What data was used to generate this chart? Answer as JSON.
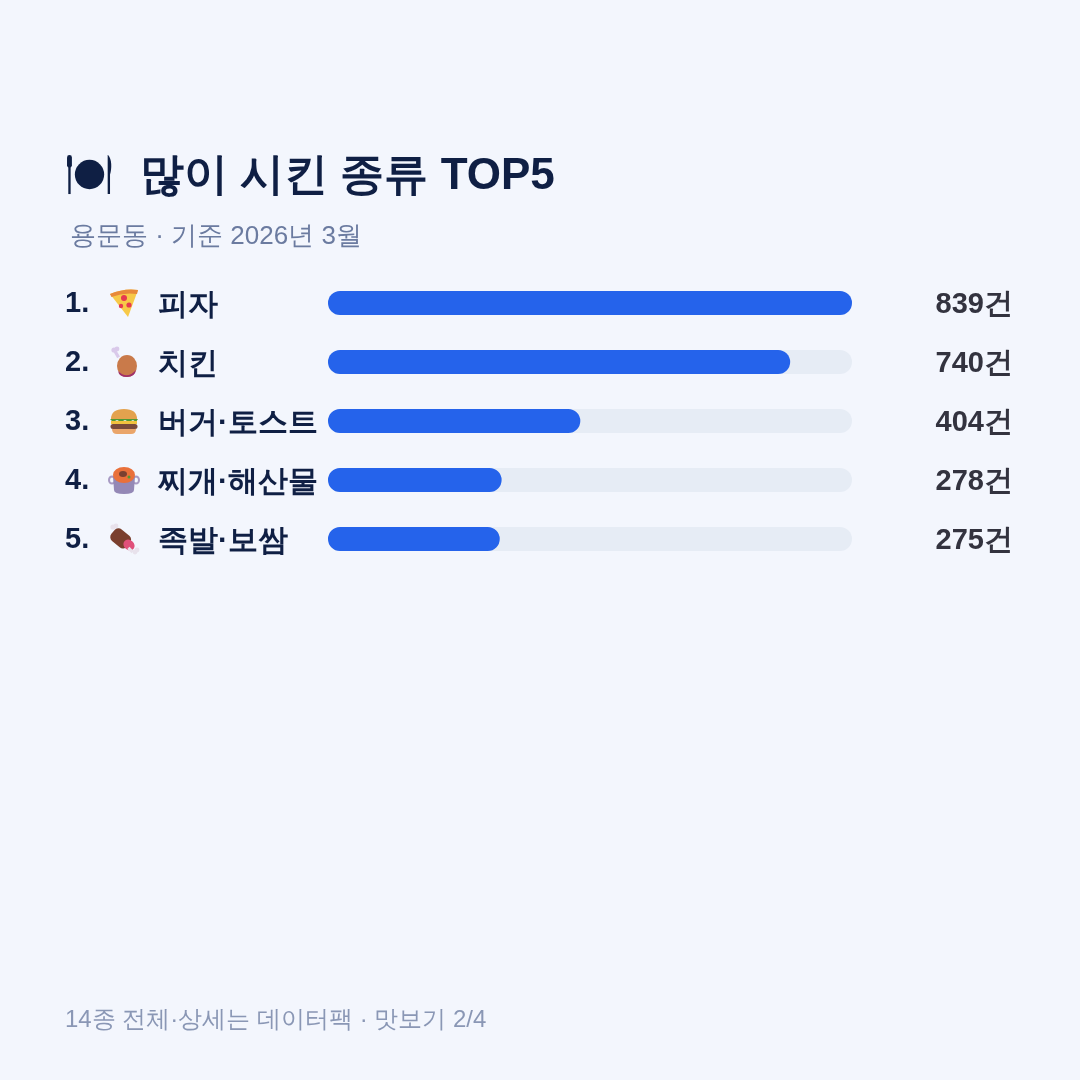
{
  "chart_data": {
    "type": "bar",
    "orientation": "horizontal",
    "title": "많이 시킨 종류 TOP5",
    "subtitle": "용문동 · 기준 2026년 3월",
    "categories": [
      "피자",
      "치킨",
      "버거·토스트",
      "찌개·해산물",
      "족발·보쌈"
    ],
    "values": [
      839,
      740,
      404,
      278,
      275
    ],
    "color": "#2563eb",
    "value_labels": [
      "839건",
      "740건",
      "404건",
      "278건",
      "275건"
    ],
    "tick_labels": "y",
    "annotations": [
      "1.",
      "2.",
      "3.",
      "4.",
      "5.",
      "14종 전체·상세는 데이터팩 · 맛보기 2/4"
    ]
  }
}
